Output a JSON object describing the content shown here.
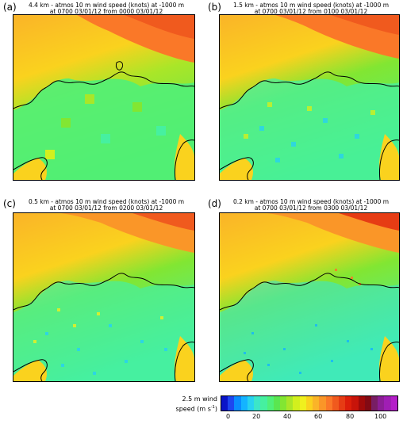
{
  "panels": [
    {
      "letter": "(a)",
      "title1": "4.4 km - atmos 10 m wind speed (knots) at -1000 m",
      "title2": "at 0700 03/01/12 from 0000 03/01/12"
    },
    {
      "letter": "(b)",
      "title1": "1.5 km - atmos 10 m wind speed (knots) at -1000 m",
      "title2": "at 0700 03/01/12 from 0100 03/01/12"
    },
    {
      "letter": "(c)",
      "title1": "0.5 km - atmos 10 m wind speed (knots) at -1000 m",
      "title2": "at 0700 03/01/12 from 0200 03/01/12"
    },
    {
      "letter": "(d)",
      "title1": "0.2 km - atmos 10 m wind speed (knots) at -1000 m",
      "title2": "at 0700 03/01/12 from 0300 03/01/12"
    }
  ],
  "colorbar": {
    "label_line1": "2.5 m wind",
    "label_line2": "speed (m s",
    "label_sup": "-1",
    "label_end": ")",
    "ticks": [
      "0",
      "20",
      "40",
      "60",
      "80",
      "100"
    ],
    "colors": [
      "#0a14c8",
      "#1e46f0",
      "#0a8cff",
      "#14b4ff",
      "#28d2f0",
      "#3ce6c8",
      "#46f0a0",
      "#50f078",
      "#5ae650",
      "#82e632",
      "#aae628",
      "#d2f01e",
      "#f0f01e",
      "#fad21e",
      "#fab428",
      "#fa9628",
      "#fa7828",
      "#f05a1e",
      "#e63c14",
      "#dc1e0a",
      "#c8140a",
      "#a00a0a",
      "#820a14",
      "#781e64",
      "#8c1e96",
      "#a01eb4",
      "#b41ec8"
    ]
  }
}
